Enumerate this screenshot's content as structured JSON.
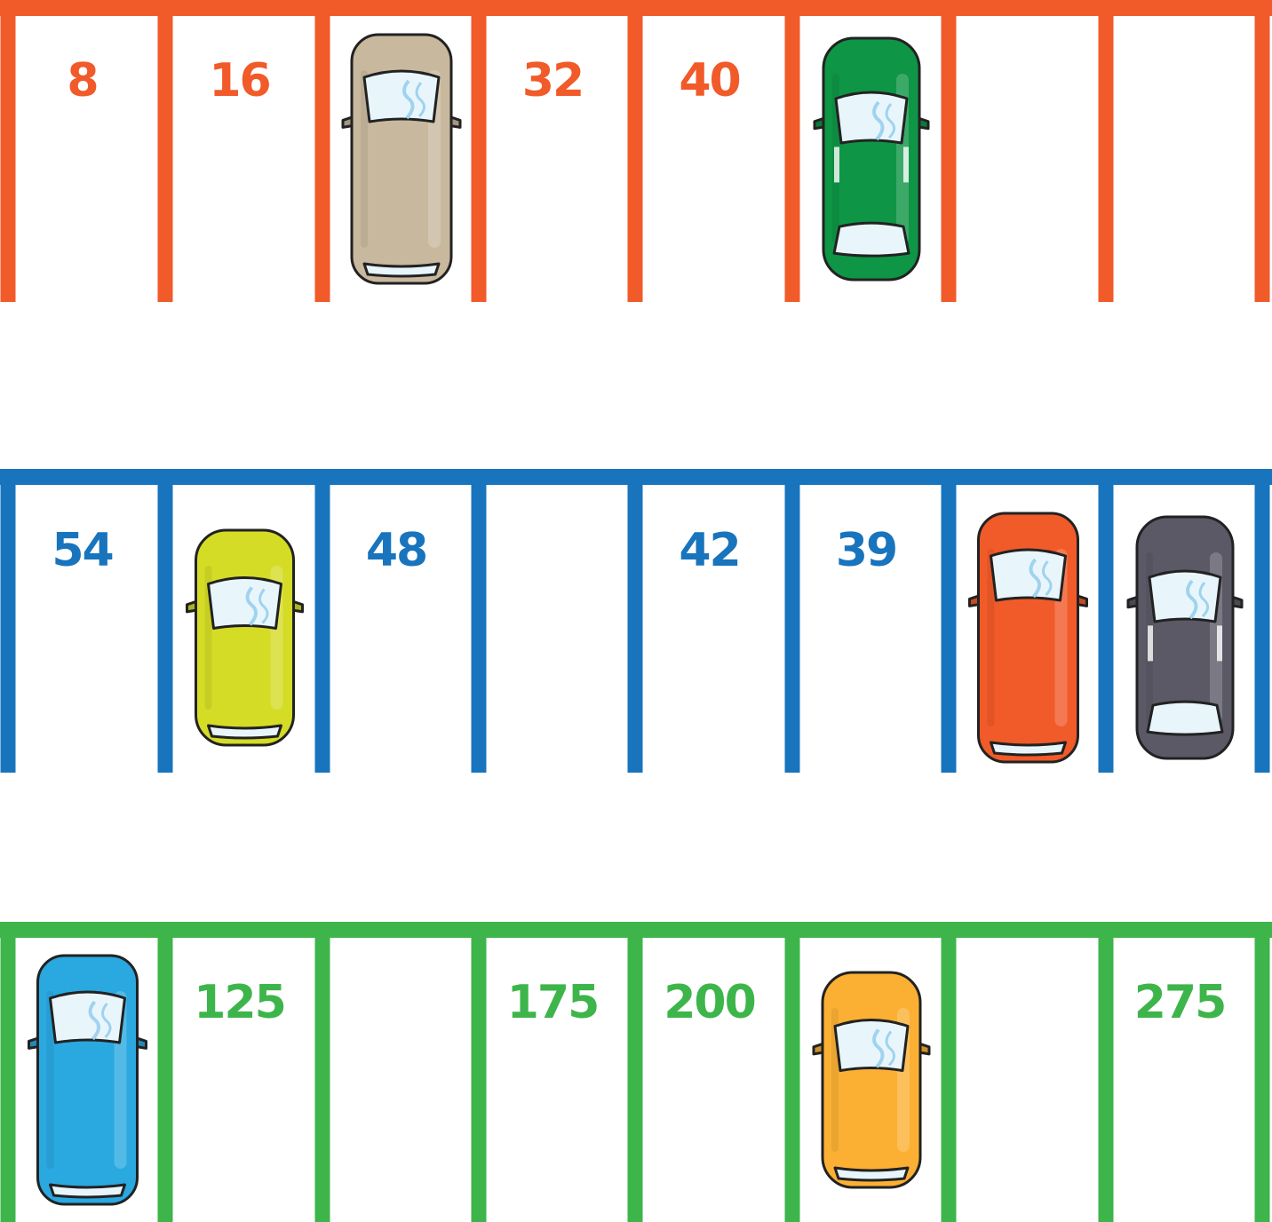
{
  "rows": [
    {
      "color": "#F15A29",
      "slots": [
        {
          "number": "8",
          "car": null
        },
        {
          "number": "16",
          "car": null
        },
        {
          "number": "",
          "car": {
            "type": "van",
            "color": "#C8B89E",
            "icon": "van-icon"
          }
        },
        {
          "number": "32",
          "car": null
        },
        {
          "number": "40",
          "car": null
        },
        {
          "number": "",
          "car": {
            "type": "sedan",
            "color": "#0E9546",
            "icon": "sedan-icon"
          }
        },
        {
          "number": "",
          "car": null
        },
        {
          "number": "",
          "car": null
        }
      ]
    },
    {
      "color": "#1874BD",
      "slots": [
        {
          "number": "54",
          "car": null
        },
        {
          "number": "",
          "car": {
            "type": "hatchback",
            "color": "#D4DC26",
            "icon": "hatchback-icon"
          }
        },
        {
          "number": "48",
          "car": null
        },
        {
          "number": "",
          "car": null
        },
        {
          "number": "42",
          "car": null
        },
        {
          "number": "39",
          "car": null
        },
        {
          "number": "",
          "car": {
            "type": "van",
            "color": "#F15A29",
            "icon": "van-icon"
          }
        },
        {
          "number": "",
          "car": {
            "type": "sedan",
            "color": "#5B5966",
            "icon": "sedan-icon"
          }
        }
      ]
    },
    {
      "color": "#3DB54A",
      "slots": [
        {
          "number": "",
          "car": {
            "type": "van",
            "color": "#2AA8E0",
            "icon": "van-icon"
          }
        },
        {
          "number": "125",
          "car": null
        },
        {
          "number": "",
          "car": null
        },
        {
          "number": "175",
          "car": null
        },
        {
          "number": "200",
          "car": null
        },
        {
          "number": "",
          "car": {
            "type": "hatchback",
            "color": "#FBB034",
            "icon": "hatchback-icon"
          }
        },
        {
          "number": "",
          "car": null
        },
        {
          "number": "275",
          "car": null
        }
      ]
    }
  ]
}
